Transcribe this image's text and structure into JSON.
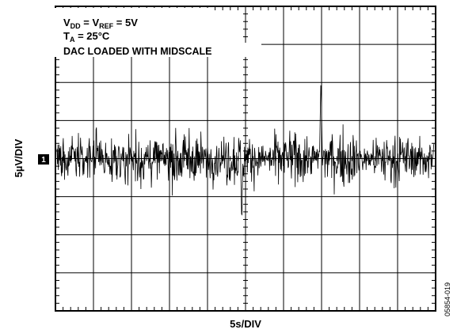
{
  "chart_data": {
    "type": "line",
    "title_lines": [
      {
        "main": "V",
        "sub": "DD",
        "mid": " = V",
        "sub2": "REF",
        "tail": " = 5V"
      },
      {
        "main": "T",
        "sub": "A",
        "mid": " = 25°C",
        "sub2": "",
        "tail": ""
      }
    ],
    "annotation": "DAC LOADED WITH MIDSCALE",
    "xlabel": "5s/DIV",
    "ylabel": "5µV/DIV",
    "channel_marker": "1",
    "figure_id": "05854-019",
    "grid": true,
    "grid_divisions": {
      "x": 10,
      "y": 8
    },
    "time_range_s": [
      0,
      50
    ],
    "noise": {
      "sample_count": 900,
      "baseline_div": 0,
      "rms_div": 0.38,
      "peak_max_div": 2.1,
      "peak_min_div": -1.8
    }
  }
}
